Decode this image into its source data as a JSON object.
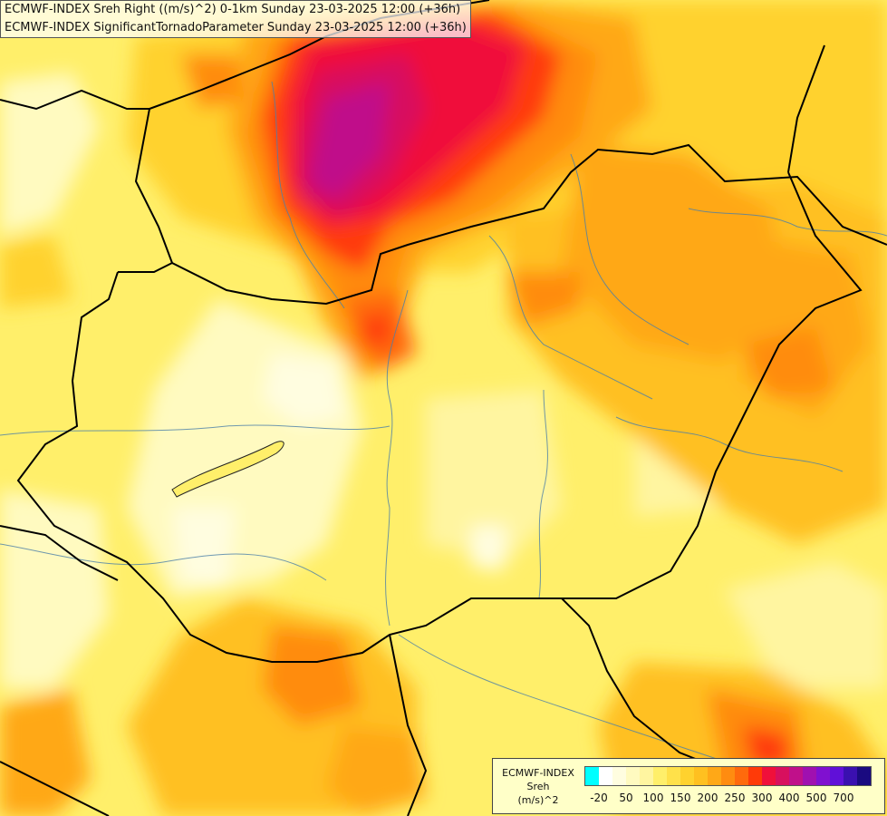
{
  "title": {
    "line1": "ECMWF-INDEX Sreh Right ((m/s)^2) 0-1km Sunday 23-03-2025 12:00 (+36h)",
    "line2": "ECMWF-INDEX SignificantTornadoParameter Sunday 23-03-2025 12:00 (+36h)"
  },
  "legend": {
    "source": "ECMWF-INDEX",
    "variable": "Sreh",
    "unit": "(m/s)^2",
    "colors": [
      "#00ffff",
      "#ffffff",
      "#fffde0",
      "#fffac0",
      "#fff5a0",
      "#ffef6a",
      "#ffe14a",
      "#ffd22e",
      "#ffc020",
      "#ffa817",
      "#ff8c10",
      "#ff6a0c",
      "#ff3a08",
      "#f0103a",
      "#d8105e",
      "#c0108a",
      "#a010b0",
      "#8010d0",
      "#6010d8",
      "#3a10b0",
      "#1a0a80"
    ],
    "tick_labels": [
      "-20",
      "50",
      "100",
      "150",
      "200",
      "250",
      "300",
      "400",
      "500",
      "700"
    ],
    "tick_index": [
      1,
      3,
      5,
      7,
      9,
      11,
      13,
      15,
      17,
      19
    ]
  }
}
